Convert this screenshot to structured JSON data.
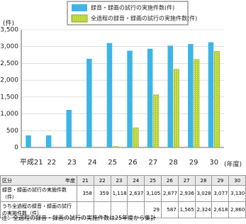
{
  "chart_data": {
    "type": "bar",
    "y_unit": "(件)",
    "x_unit": "(年度)",
    "categories": [
      "平成21",
      "22",
      "23",
      "24",
      "25",
      "26",
      "27",
      "28",
      "29",
      "30"
    ],
    "series": [
      {
        "name": "録音・録画の試行の実施件数(件)",
        "color": "#3db5e6",
        "values": [
          358,
          359,
          1118,
          2637,
          3105,
          2877,
          2936,
          3028,
          3077,
          3130
        ],
        "value_labels": [
          "358",
          "359",
          "1,118",
          "2,637",
          "3,105",
          "2,877",
          "2,936",
          "3,028",
          "3,077",
          "3,130"
        ]
      },
      {
        "name": "全過程の録音・録画の試行の実施件数(件)",
        "color": "#b4d234",
        "values": [
          null,
          null,
          null,
          null,
          29,
          587,
          1565,
          2324,
          2618,
          2860
        ],
        "value_labels": [
          null,
          null,
          null,
          null,
          "29",
          "587",
          "1,565",
          "2,324",
          "2,618",
          "2,860"
        ]
      }
    ],
    "ylim": [
      0,
      3500
    ],
    "yticks": [
      0,
      500,
      {
        "value": 1000,
        "label": "1,000"
      },
      {
        "value": 1500,
        "label": "1,500"
      },
      {
        "value": 2000,
        "label": "2,000"
      },
      {
        "value": 2500,
        "label": "2,500"
      },
      {
        "value": 3000,
        "label": "3,000"
      },
      {
        "value": 3500,
        "label": "3,500"
      }
    ],
    "grid": true
  },
  "table": {
    "corner_row": "年度",
    "corner_col": "区分",
    "years": [
      "21",
      "22",
      "23",
      "24",
      "25",
      "26",
      "27",
      "28",
      "29",
      "30"
    ],
    "row_labels": [
      "録音・録画の試行の実施件数（件）",
      "うち全過程の録音・録画の試行の実施件数（件）"
    ]
  },
  "note": "注：全過程の録音・録画の試行の実施件数は25年度から集計"
}
